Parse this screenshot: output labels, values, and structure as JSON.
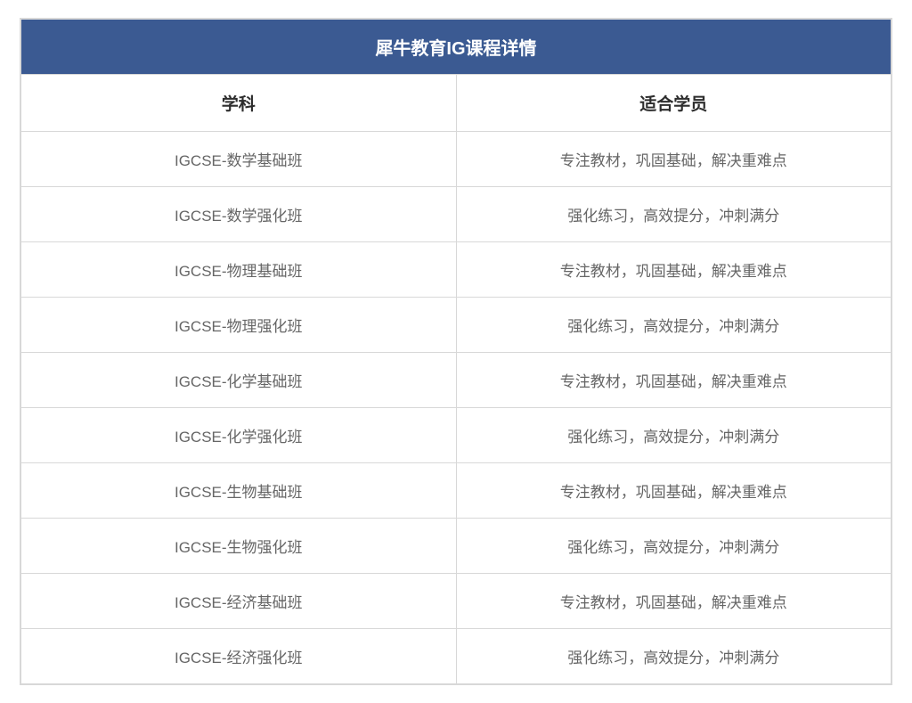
{
  "table": {
    "title": "犀牛教育IG课程详情",
    "columns": [
      "学科",
      "适合学员"
    ],
    "rows": [
      [
        "IGCSE-数学基础班",
        "专注教材，巩固基础，解决重难点"
      ],
      [
        "IGCSE-数学强化班",
        "强化练习，高效提分，冲刺满分"
      ],
      [
        "IGCSE-物理基础班",
        "专注教材，巩固基础，解决重难点"
      ],
      [
        "IGCSE-物理强化班",
        "强化练习，高效提分，冲刺满分"
      ],
      [
        "IGCSE-化学基础班",
        "专注教材，巩固基础，解决重难点"
      ],
      [
        "IGCSE-化学强化班",
        "强化练习，高效提分，冲刺满分"
      ],
      [
        "IGCSE-生物基础班",
        "专注教材，巩固基础，解决重难点"
      ],
      [
        "IGCSE-生物强化班",
        "强化练习，高效提分，冲刺满分"
      ],
      [
        "IGCSE-经济基础班",
        "专注教材，巩固基础，解决重难点"
      ],
      [
        "IGCSE-经济强化班",
        "强化练习，高效提分，冲刺满分"
      ]
    ],
    "title_bg_color": "#3b5a92",
    "title_text_color": "#ffffff",
    "border_color": "#d8d8d8",
    "header_text_color": "#2d2d2d",
    "data_text_color": "#666666",
    "title_fontsize": 20,
    "header_fontsize": 19,
    "data_fontsize": 17
  }
}
